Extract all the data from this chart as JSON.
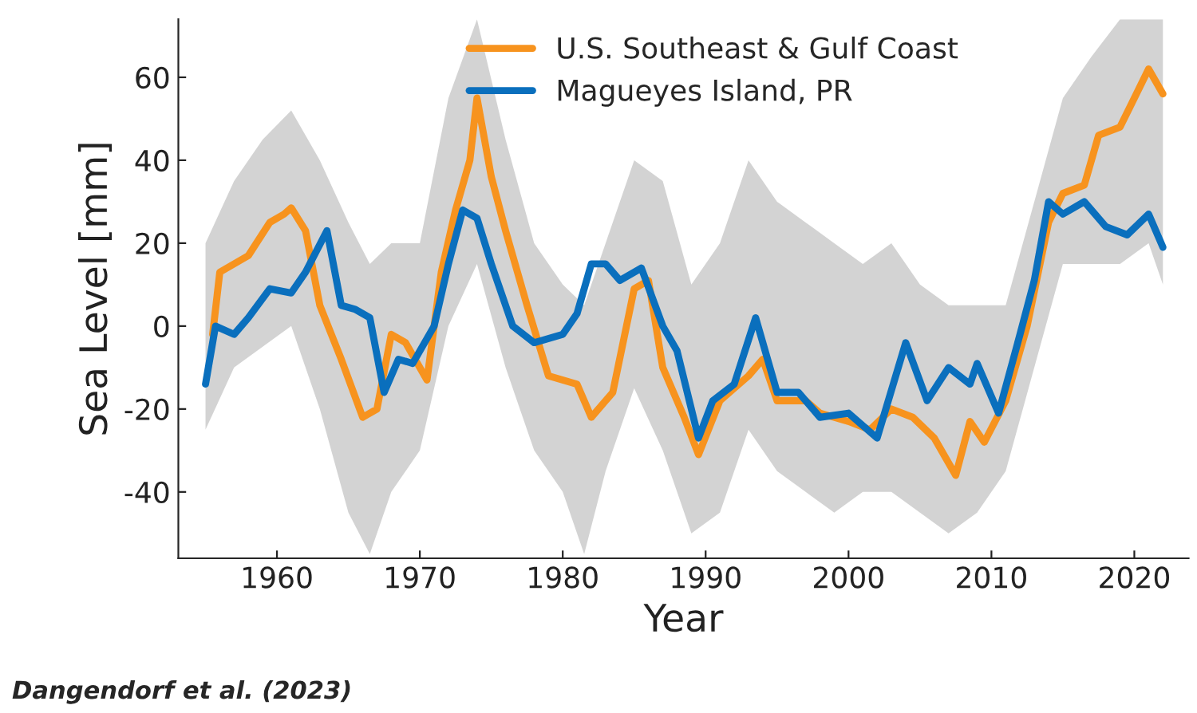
{
  "chart_data": {
    "type": "line",
    "xlabel": "Year",
    "ylabel": "Sea Level [mm]",
    "xlim": [
      1953.1,
      2023.8
    ],
    "xticks": [
      1960,
      1970,
      1980,
      1990,
      2000,
      2010,
      2020
    ],
    "ylim": [
      -56,
      74
    ],
    "yticks": [
      -40,
      -20,
      0,
      20,
      40,
      60
    ],
    "grid": false,
    "legend": "top",
    "marker": "none",
    "line_style": "solid",
    "annotations": [
      "Dangendorf et al. (2023)"
    ],
    "series": [
      {
        "color": "#c8c8c8",
        "x": [
          1955,
          1957,
          1959,
          1961,
          1963,
          1965,
          1966.5,
          1968,
          1970,
          1972,
          1974,
          1976,
          1978,
          1980,
          1981.5,
          1983,
          1985,
          1987,
          1989,
          1991,
          1993,
          1995,
          1997,
          1999,
          2001,
          2003,
          2005,
          2007,
          2009,
          2011,
          2013,
          2015,
          2017,
          2019,
          2021,
          2022
        ],
        "values": [
          null,
          null,
          null,
          null,
          null,
          null,
          null,
          null,
          null,
          null,
          null,
          null,
          null,
          null,
          null,
          null,
          null,
          null,
          null,
          null,
          null,
          null,
          null,
          null,
          null,
          null,
          null,
          null,
          null,
          null,
          null,
          null,
          null,
          null,
          null,
          null
        ],
        "lower": [
          -25,
          -10,
          -5,
          0,
          -20,
          -45,
          -55,
          -40,
          -30,
          0,
          15,
          -10,
          -30,
          -40,
          -55,
          -35,
          -15,
          -30,
          -50,
          -45,
          -25,
          -35,
          -40,
          -45,
          -40,
          -40,
          -45,
          -50,
          -45,
          -35,
          -10,
          15,
          15,
          15,
          20,
          10
        ],
        "upper": [
          20,
          35,
          45,
          52,
          40,
          25,
          15,
          20,
          20,
          55,
          74,
          45,
          20,
          10,
          5,
          20,
          40,
          35,
          10,
          20,
          40,
          30,
          25,
          20,
          15,
          20,
          10,
          5,
          5,
          5,
          30,
          55,
          65,
          74,
          74,
          74
        ]
      },
      {
        "name": "U.S. Southeast & Gulf Coast",
        "color": "#f7931e",
        "x": [
          1955.5,
          1956,
          1958,
          1959.5,
          1960.5,
          1961,
          1962,
          1963,
          1964.5,
          1966,
          1967,
          1968,
          1969,
          1970.5,
          1971.5,
          1972.5,
          1973.5,
          1974,
          1975,
          1976,
          1977.5,
          1979,
          1981,
          1982,
          1983.5,
          1985,
          1986,
          1987,
          1988.5,
          1989.5,
          1991,
          1993,
          1994,
          1995,
          1997,
          1998,
          2000,
          2001.5,
          2003,
          2004.5,
          2006,
          2007.5,
          2008.5,
          2009.5,
          2011,
          2012.5,
          2014,
          2015,
          2016.5,
          2017.5,
          2019,
          2020,
          2021,
          2022
        ],
        "values": [
          -2,
          13,
          17,
          25,
          27,
          28.5,
          23,
          5,
          -8,
          -22,
          -20,
          -2,
          -4,
          -13,
          13,
          28,
          40,
          55,
          36,
          23,
          5,
          -12,
          -14,
          -22,
          -16,
          9,
          11,
          -10,
          -22,
          -31,
          -18,
          -12,
          -8,
          -18,
          -18,
          -21,
          -23,
          -25,
          -20,
          -22,
          -27,
          -36,
          -23,
          -28,
          -18,
          0,
          25,
          32,
          34,
          46,
          48,
          55,
          62,
          56
        ]
      },
      {
        "name": "Magueyes Island, PR",
        "color": "#0a6fbd",
        "x": [
          1955,
          1955.7,
          1957,
          1958,
          1959.5,
          1961,
          1962,
          1963.5,
          1964.5,
          1965.5,
          1966.5,
          1967.5,
          1968.5,
          1969.5,
          1971,
          1972,
          1973,
          1974,
          1975,
          1976.5,
          1978,
          1980,
          1981,
          1982,
          1983,
          1984,
          1985.5,
          1987,
          1988,
          1989.5,
          1990.5,
          1992,
          1993.5,
          1995,
          1996.5,
          1998,
          2000,
          2002,
          2004,
          2005.5,
          2007,
          2008.5,
          2009,
          2010.5,
          2012,
          2013,
          2014,
          2015,
          2016.5,
          2018,
          2019.5,
          2021,
          2022
        ],
        "values": [
          -14,
          0,
          -2,
          2,
          9,
          8,
          13,
          23,
          5,
          4,
          2,
          -16,
          -8,
          -9,
          0,
          15,
          28,
          26,
          15,
          0,
          -4,
          -2,
          3,
          15,
          15,
          11,
          14,
          0,
          -6,
          -27,
          -18,
          -14,
          2,
          -16,
          -16,
          -22,
          -21,
          -27,
          -4,
          -18,
          -10,
          -14,
          -9,
          -21,
          -2,
          11,
          30,
          27,
          30,
          24,
          22,
          27,
          19
        ]
      }
    ]
  }
}
